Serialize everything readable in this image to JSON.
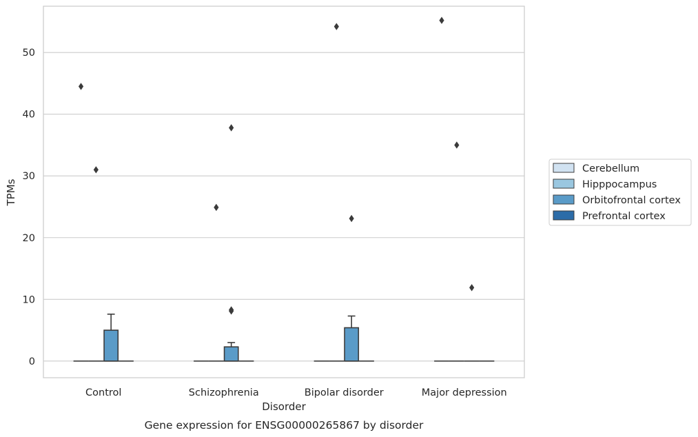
{
  "chart_data": {
    "type": "box",
    "title": "",
    "caption": "Gene expression for ENSG00000265867 by disorder",
    "xlabel": "Disorder",
    "ylabel": "TPMs",
    "ylim": [
      -2.7,
      57.5
    ],
    "yticks": [
      0,
      10,
      20,
      30,
      40,
      50
    ],
    "grid": true,
    "legend_position": "right",
    "categories": [
      "Control",
      "Schizophrenia",
      "Bipolar disorder",
      "Major depression"
    ],
    "series": [
      {
        "name": "Cerebellum",
        "color": "#d1e2f1",
        "boxes": [
          {
            "min": 0,
            "q1": 0,
            "median": 0,
            "q3": 0,
            "max": 0,
            "outliers": [
              44.5
            ]
          },
          {
            "min": 0,
            "q1": 0,
            "median": 0,
            "q3": 0,
            "max": 0,
            "outliers": []
          },
          {
            "min": 0,
            "q1": 0,
            "median": 0,
            "q3": 0,
            "max": 0,
            "outliers": []
          },
          {
            "min": 0,
            "q1": 0,
            "median": 0,
            "q3": 0,
            "max": 0,
            "outliers": [
              55.2
            ]
          }
        ]
      },
      {
        "name": "Hipppocampus",
        "color": "#9ac7e0",
        "boxes": [
          {
            "min": 0,
            "q1": 0,
            "median": 0,
            "q3": 0,
            "max": 0,
            "outliers": [
              31.0
            ]
          },
          {
            "min": 0,
            "q1": 0,
            "median": 0,
            "q3": 0,
            "max": 0,
            "outliers": [
              24.9
            ]
          },
          {
            "min": 0,
            "q1": 0,
            "median": 0,
            "q3": 0,
            "max": 0,
            "outliers": [
              54.2
            ]
          },
          {
            "min": 0,
            "q1": 0,
            "median": 0,
            "q3": 0,
            "max": 0,
            "outliers": [
              35.0
            ]
          }
        ]
      },
      {
        "name": "Orbitofrontal cortex",
        "color": "#5a9bc8",
        "boxes": [
          {
            "min": 0,
            "q1": 0,
            "median": 0,
            "q3": 5.0,
            "max": 7.6,
            "outliers": []
          },
          {
            "min": 0,
            "q1": 0,
            "median": 0,
            "q3": 2.3,
            "max": 3.0,
            "outliers": [
              37.8,
              8.3,
              8.1
            ]
          },
          {
            "min": 0,
            "q1": 0,
            "median": 0,
            "q3": 5.4,
            "max": 7.3,
            "outliers": [
              23.1
            ]
          },
          {
            "min": 0,
            "q1": 0,
            "median": 0,
            "q3": 0,
            "max": 0,
            "outliers": [
              11.9
            ]
          }
        ]
      },
      {
        "name": "Prefrontal cortex",
        "color": "#2c6ca8",
        "boxes": [
          {
            "min": 0,
            "q1": 0,
            "median": 0,
            "q3": 0,
            "max": 0,
            "outliers": []
          },
          {
            "min": 0,
            "q1": 0,
            "median": 0,
            "q3": 0,
            "max": 0,
            "outliers": []
          },
          {
            "min": 0,
            "q1": 0,
            "median": 0,
            "q3": 0,
            "max": 0,
            "outliers": []
          },
          {
            "min": 0,
            "q1": 0,
            "median": 0,
            "q3": 0,
            "max": 0,
            "outliers": []
          }
        ]
      }
    ],
    "line_color": "#3b3b3b",
    "grid_color": "#cccccc",
    "frame_color": "#cccccc"
  }
}
